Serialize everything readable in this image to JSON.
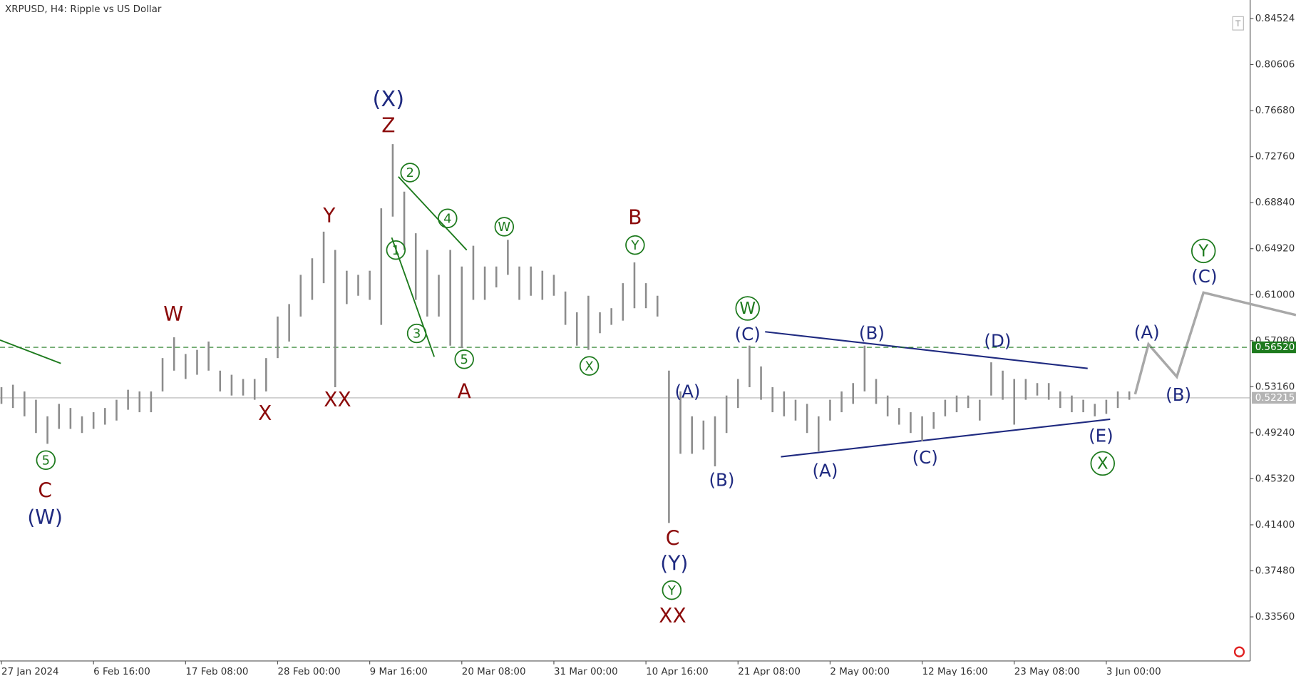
{
  "chart_data": {
    "type": "range",
    "title": "XRPUSD, H4:  Ripple vs US Dollar",
    "color": "#8c8c8c",
    "x": [
      0,
      8,
      16,
      24,
      32,
      40,
      48,
      56,
      64,
      72,
      80,
      88,
      96,
      104,
      112,
      120,
      128,
      136,
      144,
      152,
      160,
      168,
      176,
      184,
      192,
      200,
      208,
      216,
      224,
      232,
      240,
      248,
      256,
      264,
      272,
      280,
      288,
      296,
      304,
      312,
      320,
      328,
      336,
      344,
      352,
      360,
      368,
      376,
      384,
      392,
      400,
      408,
      416,
      424,
      432,
      440,
      448,
      456,
      464,
      472,
      480,
      488,
      496,
      504,
      512,
      520,
      528,
      536,
      544,
      552,
      560,
      568,
      576,
      584,
      592,
      600,
      608,
      616,
      624,
      632,
      640,
      648,
      656,
      664,
      672,
      680,
      688,
      696,
      704,
      712,
      720,
      728,
      736,
      744,
      752,
      760,
      768,
      776,
      784
    ],
    "high": [
      0.5312,
      0.5333,
      0.5276,
      0.5205,
      0.5064,
      0.517,
      0.5135,
      0.5064,
      0.5099,
      0.5135,
      0.5205,
      0.529,
      0.5276,
      0.5276,
      0.556,
      0.5737,
      0.5595,
      0.563,
      0.5701,
      0.5453,
      0.5418,
      0.5382,
      0.5382,
      0.556,
      0.5914,
      0.602,
      0.6269,
      0.641,
      0.6637,
      0.6481,
      0.6304,
      0.6269,
      0.6304,
      0.6836,
      0.7382,
      0.6978,
      0.6623,
      0.6481,
      0.6269,
      0.6481,
      0.634,
      0.6517,
      0.634,
      0.634,
      0.6567,
      0.634,
      0.634,
      0.6304,
      0.6269,
      0.6127,
      0.595,
      0.6091,
      0.595,
      0.5985,
      0.6198,
      0.6375,
      0.6198,
      0.6091,
      0.5453,
      0.5276,
      0.5064,
      0.5028,
      0.5064,
      0.5241,
      0.5382,
      0.5666,
      0.5489,
      0.5312,
      0.5276,
      0.5205,
      0.517,
      0.5064,
      0.5205,
      0.5276,
      0.5347,
      0.5666,
      0.5382,
      0.5241,
      0.5135,
      0.5099,
      0.5064,
      0.5099,
      0.5205,
      0.5241,
      0.5241,
      0.5205,
      0.5524,
      0.5453,
      0.5382,
      0.5382,
      0.5347,
      0.5347,
      0.5276,
      0.5241,
      0.5205,
      0.517,
      0.5205,
      0.5276,
      0.5276
    ],
    "low": [
      0.517,
      0.5135,
      0.5064,
      0.4922,
      0.483,
      0.4957,
      0.4957,
      0.4922,
      0.4957,
      0.4993,
      0.5028,
      0.512,
      0.5099,
      0.5099,
      0.5276,
      0.5453,
      0.5382,
      0.5418,
      0.5453,
      0.5276,
      0.5241,
      0.5241,
      0.5205,
      0.5276,
      0.556,
      0.5701,
      0.5914,
      0.6056,
      0.6198,
      0.5312,
      0.602,
      0.6091,
      0.6056,
      0.5843,
      0.6765,
      0.6481,
      0.6056,
      0.5914,
      0.5914,
      0.5666,
      0.5645,
      0.6056,
      0.6056,
      0.6162,
      0.6269,
      0.6056,
      0.6091,
      0.6056,
      0.6091,
      0.5843,
      0.5666,
      0.563,
      0.5772,
      0.5843,
      0.5879,
      0.5985,
      0.5985,
      0.5914,
      0.4156,
      0.4745,
      0.4745,
      0.478,
      0.4638,
      0.4922,
      0.5135,
      0.5312,
      0.5205,
      0.5099,
      0.5064,
      0.5028,
      0.4922,
      0.4766,
      0.5028,
      0.5099,
      0.517,
      0.5276,
      0.517,
      0.5064,
      0.4993,
      0.4922,
      0.4851,
      0.4957,
      0.5064,
      0.5099,
      0.5135,
      0.5028,
      0.5241,
      0.5205,
      0.4993,
      0.5205,
      0.5241,
      0.5205,
      0.5135,
      0.5099,
      0.5099,
      0.5064,
      0.5085,
      0.5135,
      0.5205
    ],
    "xlim": [
      -1,
      868
    ],
    "xticks": [
      {
        "value": 0,
        "label": "27 Jan 2024"
      },
      {
        "value": 64,
        "label": "6 Feb 16:00"
      },
      {
        "value": 128,
        "label": "17 Feb 08:00"
      },
      {
        "value": 192,
        "label": "28 Feb 00:00"
      },
      {
        "value": 256,
        "label": "9 Mar 16:00"
      },
      {
        "value": 320,
        "label": "20 Mar 08:00"
      },
      {
        "value": 384,
        "label": "31 Mar 00:00"
      },
      {
        "value": 448,
        "label": "10 Apr 16:00"
      },
      {
        "value": 512,
        "label": "21 Apr 08:00"
      },
      {
        "value": 576,
        "label": "2 May 00:00"
      },
      {
        "value": 640,
        "label": "12 May 16:00"
      },
      {
        "value": 704,
        "label": "23 May 08:00"
      },
      {
        "value": 768,
        "label": "3 Jun 00:00"
      }
    ],
    "ylim": [
      0.298,
      0.861
    ],
    "yticks": [
      0.84524,
      0.80606,
      {
        "value": 0.7668,
        "label": "0.76680"
      },
      {
        "value": 0.7276,
        "label": "0.72760"
      },
      {
        "value": 0.6884,
        "label": "0.68840"
      },
      {
        "value": 0.6492,
        "label": "0.64920"
      },
      {
        "value": 0.61,
        "label": "0.61000"
      },
      {
        "value": 0.5708,
        "label": "0.57080"
      },
      {
        "value": 0.5316,
        "label": "0.53160"
      },
      {
        "value": 0.4924,
        "label": "0.49240"
      },
      {
        "value": 0.4532,
        "label": "0.45320"
      },
      {
        "value": 0.414,
        "label": "0.41400"
      },
      {
        "value": 0.3748,
        "label": "0.37480"
      },
      {
        "value": 0.3356,
        "label": "0.33560"
      }
    ],
    "levels": [
      {
        "value": 0.5652,
        "label": "0.56520",
        "color": "#1d7a1d",
        "dashed": true
      },
      {
        "value": 0.52215,
        "label": "0.52215",
        "color": "#b4b4b4",
        "dashed": false
      }
    ],
    "annotations": [
      {
        "text": "(X)",
        "color": "#1f2a80"
      },
      {
        "text": "Z",
        "color": "#8b0a0a"
      },
      {
        "text": "Y",
        "color": "#8b0a0a"
      },
      {
        "text": "W",
        "color": "#8b0a0a"
      },
      {
        "text": "X",
        "color": "#8b0a0a"
      },
      {
        "text": "XX",
        "color": "#8b0a0a"
      },
      {
        "text": "C",
        "color": "#8b0a0a"
      },
      {
        "text": "(W)",
        "color": "#1f2a80"
      },
      {
        "text": "5",
        "color": "#1d7a1d",
        "circle": true
      },
      {
        "text": "1",
        "color": "#1d7a1d",
        "circle": true
      },
      {
        "text": "2",
        "color": "#1d7a1d",
        "circle": true
      },
      {
        "text": "3",
        "color": "#1d7a1d",
        "circle": true
      },
      {
        "text": "4",
        "color": "#1d7a1d",
        "circle": true
      },
      {
        "text": "5",
        "color": "#1d7a1d",
        "circle": true
      },
      {
        "text": "A",
        "color": "#8b0a0a"
      },
      {
        "text": "W",
        "color": "#1d7a1d",
        "circle": true
      },
      {
        "text": "X",
        "color": "#1d7a1d",
        "circle": true
      },
      {
        "text": "B",
        "color": "#8b0a0a"
      },
      {
        "text": "Y",
        "color": "#1d7a1d",
        "circle": true
      },
      {
        "text": "C",
        "color": "#8b0a0a"
      },
      {
        "text": "(Y)",
        "color": "#1f2a80"
      },
      {
        "text": "Y",
        "color": "#1d7a1d",
        "circle": true
      },
      {
        "text": "XX",
        "color": "#8b0a0a"
      },
      {
        "text": "(A)",
        "color": "#1f2a80"
      },
      {
        "text": "(B)",
        "color": "#1f2a80"
      },
      {
        "text": "(C)",
        "color": "#1f2a80"
      },
      {
        "text": "W",
        "color": "#1d7a1d",
        "circle": true
      },
      {
        "text": "(A)",
        "color": "#1f2a80"
      },
      {
        "text": "(B)",
        "color": "#1f2a80"
      },
      {
        "text": "(C)",
        "color": "#1f2a80"
      },
      {
        "text": "(D)",
        "color": "#1f2a80"
      },
      {
        "text": "(E)",
        "color": "#1f2a80"
      },
      {
        "text": "X",
        "color": "#1d7a1d",
        "circle": true
      },
      {
        "text": "(A)",
        "color": "#1f2a80"
      },
      {
        "text": "(B)",
        "color": "#1f2a80"
      },
      {
        "text": "(C)",
        "color": "#1f2a80"
      },
      {
        "text": "Y",
        "color": "#1d7a1d",
        "circle": true
      }
    ]
  }
}
